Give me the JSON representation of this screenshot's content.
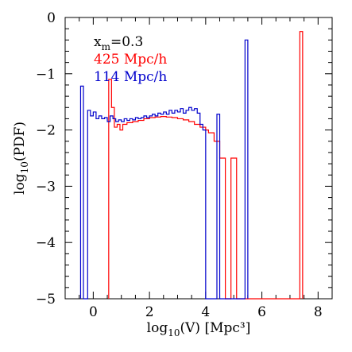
{
  "chart_data": {
    "type": "step-histogram",
    "xlabel_main": "log",
    "xlabel_sub": "10",
    "xlabel_rest": "(V) [Mpc³]",
    "ylabel_main": "log",
    "ylabel_sub": "10",
    "ylabel_rest": "(PDF)",
    "xlim": [
      -1,
      8.5
    ],
    "ylim": [
      -5,
      0
    ],
    "xticks": [
      0,
      2,
      4,
      6,
      8
    ],
    "xtick_labels": [
      "0",
      "2",
      "4",
      "6",
      "8"
    ],
    "yticks": [
      -5,
      -4,
      -3,
      -2,
      -1,
      0
    ],
    "ytick_labels": [
      "−5",
      "−4",
      "−3",
      "−2",
      "−1",
      "0"
    ],
    "legend": {
      "line1_main": "x",
      "line1_sub": "m",
      "line1_rest": "=0.3",
      "items": [
        {
          "label": "425 Mpc/h",
          "color": "#ff0000"
        },
        {
          "label": "114 Mpc/h",
          "color": "#0000cc"
        }
      ]
    },
    "series": [
      {
        "name": "425 Mpc/h",
        "color": "#ff0000",
        "x": [
          0.55,
          0.65,
          0.75,
          0.85,
          0.95,
          1.05,
          1.2,
          1.4,
          1.6,
          1.8,
          2.0,
          2.2,
          2.4,
          2.6,
          2.8,
          3.0,
          3.2,
          3.4,
          3.6,
          3.8,
          4.0,
          4.1,
          4.3,
          4.5,
          4.7,
          4.9,
          5.1,
          5.3,
          7.35,
          7.45
        ],
        "y": [
          -1.1,
          -1.6,
          -1.95,
          -1.9,
          -2.0,
          -1.9,
          -1.87,
          -1.85,
          -1.83,
          -1.8,
          -1.78,
          -1.77,
          -1.76,
          -1.77,
          -1.78,
          -1.8,
          -1.82,
          -1.85,
          -1.9,
          -1.95,
          -2.0,
          -2.05,
          -2.2,
          -2.5,
          -5,
          -2.5,
          -5,
          -5,
          -0.25,
          -5
        ]
      },
      {
        "name": "114 Mpc/h",
        "color": "#0000cc",
        "x": [
          -0.45,
          -0.35,
          -0.2,
          -0.1,
          0.0,
          0.1,
          0.2,
          0.3,
          0.4,
          0.5,
          0.6,
          0.7,
          0.8,
          0.9,
          1.0,
          1.1,
          1.2,
          1.3,
          1.4,
          1.5,
          1.6,
          1.7,
          1.8,
          1.9,
          2.0,
          2.1,
          2.2,
          2.3,
          2.4,
          2.5,
          2.6,
          2.7,
          2.8,
          2.9,
          3.0,
          3.1,
          3.2,
          3.3,
          3.4,
          3.5,
          3.6,
          3.7,
          3.8,
          3.9,
          4.0,
          4.4,
          4.5,
          5.4,
          5.5
        ],
        "y": [
          -1.22,
          -5,
          -1.65,
          -1.75,
          -1.68,
          -1.8,
          -1.75,
          -1.8,
          -1.78,
          -1.85,
          -1.75,
          -1.8,
          -1.85,
          -1.82,
          -1.85,
          -1.8,
          -1.83,
          -1.8,
          -1.82,
          -1.78,
          -1.8,
          -1.78,
          -1.75,
          -1.78,
          -1.75,
          -1.72,
          -1.75,
          -1.7,
          -1.72,
          -1.68,
          -1.72,
          -1.65,
          -1.7,
          -1.65,
          -1.68,
          -1.62,
          -1.7,
          -1.65,
          -1.6,
          -1.65,
          -1.62,
          -1.7,
          -1.9,
          -2.0,
          -5,
          -1.72,
          -5,
          -0.4,
          -5
        ]
      }
    ]
  }
}
